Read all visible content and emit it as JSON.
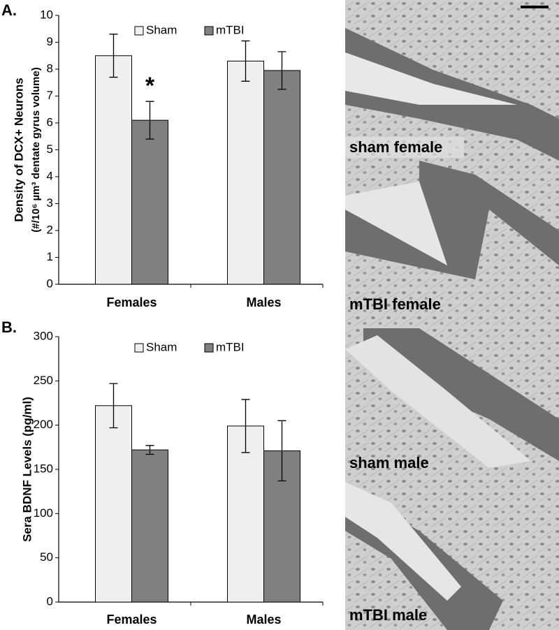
{
  "panels": [
    "A.",
    "B."
  ],
  "images": [
    "sham female",
    "mTBI female",
    "sham male",
    "mTBI male"
  ],
  "chart_data": [
    {
      "type": "bar",
      "y_label": [
        "Density of DCX+ Neurons",
        "(#/10⁶ µm³ dentate gyrus volume)"
      ],
      "categories": [
        "Females",
        "Males"
      ],
      "series": [
        {
          "name": "Sham",
          "color": "#efefef",
          "values": [
            8.5,
            8.3
          ],
          "errors": [
            0.8,
            0.75
          ]
        },
        {
          "name": "mTBI",
          "color": "#808080",
          "values": [
            6.1,
            7.95
          ],
          "errors": [
            0.7,
            0.7
          ]
        }
      ],
      "annotations": [
        "*"
      ],
      "ylim": [
        0,
        10
      ],
      "yticks": [
        0,
        1,
        2,
        3,
        4,
        5,
        6,
        7,
        8,
        9,
        10
      ],
      "grid": false,
      "legend": "top"
    },
    {
      "type": "bar",
      "y_label": [
        "Sera BDNF Levels (pg/ml)"
      ],
      "categories": [
        "Females",
        "Males"
      ],
      "series": [
        {
          "name": "Sham",
          "color": "#efefef",
          "values": [
            222,
            199
          ],
          "errors": [
            25,
            30
          ]
        },
        {
          "name": "mTBI",
          "color": "#808080",
          "values": [
            172,
            171
          ],
          "errors": [
            5,
            34
          ]
        }
      ],
      "ylim": [
        0,
        300
      ],
      "yticks": [
        0,
        50,
        100,
        150,
        200,
        250,
        300
      ],
      "grid": false,
      "legend": "top"
    }
  ]
}
